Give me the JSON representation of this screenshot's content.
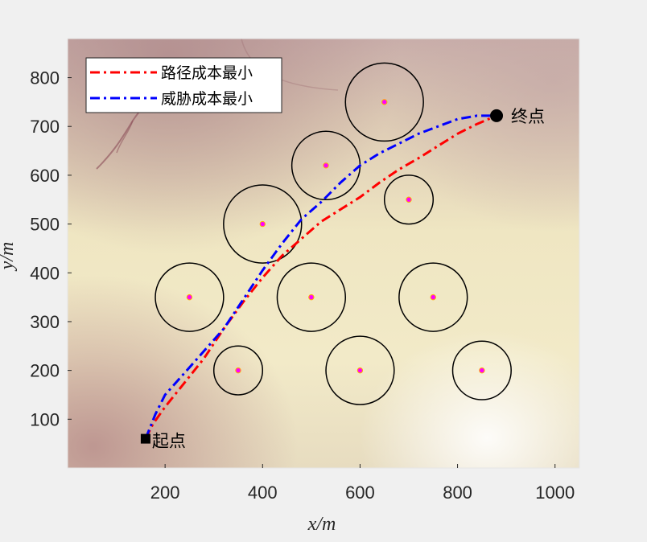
{
  "chart_data": {
    "type": "line",
    "xlabel": "x/m",
    "ylabel": "y/m",
    "xlim": [
      0,
      1050
    ],
    "ylim": [
      0,
      880
    ],
    "xticks": [
      200,
      400,
      600,
      800,
      1000
    ],
    "yticks": [
      100,
      200,
      300,
      400,
      500,
      600,
      700,
      800
    ],
    "grid": false,
    "legend_placement": "top-left",
    "background": "terrain elevation map",
    "series": [
      {
        "name": "路径成本最小",
        "color": "#ff0000",
        "style": "dash-dot",
        "x": [
          160,
          175,
          200,
          240,
          280,
          320,
          360,
          400,
          440,
          480,
          520,
          560,
          600,
          640,
          680,
          720,
          760,
          800,
          840,
          880
        ],
        "y": [
          60,
          90,
          125,
          175,
          225,
          285,
          340,
          390,
          435,
          470,
          505,
          530,
          555,
          585,
          612,
          635,
          660,
          685,
          705,
          722
        ]
      },
      {
        "name": "威胁成本最小",
        "color": "#0000ff",
        "style": "dash-dot",
        "x": [
          160,
          180,
          200,
          240,
          280,
          320,
          360,
          400,
          440,
          480,
          520,
          560,
          600,
          640,
          680,
          720,
          760,
          800,
          840,
          880
        ],
        "y": [
          60,
          110,
          150,
          195,
          240,
          285,
          345,
          405,
          460,
          510,
          545,
          585,
          620,
          645,
          665,
          685,
          700,
          715,
          722,
          722
        ]
      }
    ],
    "threats": [
      {
        "x": 250,
        "y": 350,
        "r": 70
      },
      {
        "x": 350,
        "y": 200,
        "r": 50
      },
      {
        "x": 400,
        "y": 500,
        "r": 80
      },
      {
        "x": 500,
        "y": 350,
        "r": 70
      },
      {
        "x": 530,
        "y": 620,
        "r": 70
      },
      {
        "x": 600,
        "y": 200,
        "r": 70
      },
      {
        "x": 650,
        "y": 750,
        "r": 80
      },
      {
        "x": 700,
        "y": 550,
        "r": 50
      },
      {
        "x": 750,
        "y": 350,
        "r": 70
      },
      {
        "x": 850,
        "y": 200,
        "r": 60
      }
    ],
    "start": {
      "x": 160,
      "y": 60,
      "label": "起点"
    },
    "end": {
      "x": 880,
      "y": 722,
      "label": "终点"
    }
  }
}
